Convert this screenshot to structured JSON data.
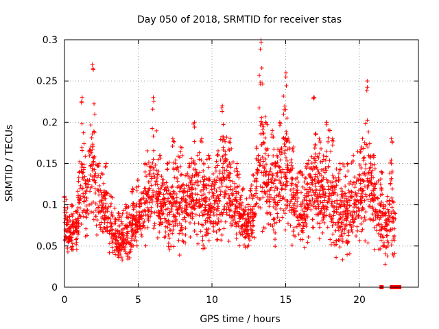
{
  "chart_data": {
    "type": "scatter",
    "title": "Day 050 of 2018, SRMTID for receiver stas",
    "xlabel": "GPS time / hours",
    "ylabel": "SRMTID / TECUs",
    "xlim": [
      0,
      24
    ],
    "ylim": [
      0,
      0.3
    ],
    "xticks": [
      0,
      5,
      10,
      15,
      20
    ],
    "yticks": [
      0,
      0.05,
      0.1,
      0.15,
      0.2,
      0.25,
      0.3
    ],
    "xtick_labels": [
      "0",
      "5",
      "10",
      "15",
      "20"
    ],
    "ytick_labels": [
      "0",
      "0.05",
      "0.1",
      "0.15",
      "0.2",
      "0.25",
      "0.3"
    ],
    "grid": true,
    "marker": "+",
    "series_color": "#ff0000",
    "zero_markers": [
      21.5,
      22.2,
      22.3,
      22.5,
      22.6,
      22.7
    ],
    "envelope": [
      [
        0.0,
        0.03,
        0.11
      ],
      [
        0.5,
        0.03,
        0.1
      ],
      [
        1.0,
        0.03,
        0.14
      ],
      [
        1.2,
        0.04,
        0.23
      ],
      [
        1.5,
        0.04,
        0.13
      ],
      [
        1.9,
        0.04,
        0.27
      ],
      [
        2.3,
        0.04,
        0.15
      ],
      [
        2.8,
        0.04,
        0.15
      ],
      [
        3.2,
        0.03,
        0.11
      ],
      [
        3.7,
        0.02,
        0.09
      ],
      [
        4.2,
        0.02,
        0.1
      ],
      [
        4.6,
        0.03,
        0.12
      ],
      [
        5.0,
        0.04,
        0.13
      ],
      [
        5.5,
        0.04,
        0.15
      ],
      [
        6.0,
        0.04,
        0.23
      ],
      [
        6.5,
        0.04,
        0.16
      ],
      [
        7.0,
        0.03,
        0.15
      ],
      [
        7.4,
        0.02,
        0.18
      ],
      [
        7.9,
        0.03,
        0.17
      ],
      [
        8.4,
        0.04,
        0.15
      ],
      [
        8.8,
        0.04,
        0.2
      ],
      [
        9.3,
        0.03,
        0.18
      ],
      [
        9.8,
        0.04,
        0.16
      ],
      [
        10.3,
        0.04,
        0.16
      ],
      [
        10.7,
        0.04,
        0.22
      ],
      [
        11.2,
        0.04,
        0.18
      ],
      [
        11.7,
        0.04,
        0.15
      ],
      [
        12.1,
        0.03,
        0.12
      ],
      [
        12.6,
        0.03,
        0.12
      ],
      [
        13.0,
        0.04,
        0.17
      ],
      [
        13.3,
        0.05,
        0.3
      ],
      [
        13.7,
        0.04,
        0.2
      ],
      [
        14.1,
        0.03,
        0.19
      ],
      [
        14.6,
        0.04,
        0.2
      ],
      [
        15.0,
        0.04,
        0.26
      ],
      [
        15.5,
        0.04,
        0.17
      ],
      [
        16.0,
        0.03,
        0.14
      ],
      [
        16.4,
        0.04,
        0.15
      ],
      [
        16.9,
        0.04,
        0.23
      ],
      [
        17.3,
        0.03,
        0.18
      ],
      [
        17.8,
        0.03,
        0.2
      ],
      [
        18.2,
        0.02,
        0.18
      ],
      [
        18.7,
        0.02,
        0.15
      ],
      [
        19.2,
        0.02,
        0.15
      ],
      [
        19.6,
        0.03,
        0.16
      ],
      [
        20.1,
        0.03,
        0.17
      ],
      [
        20.5,
        0.03,
        0.25
      ],
      [
        21.0,
        0.03,
        0.16
      ],
      [
        21.5,
        0.02,
        0.14
      ],
      [
        21.9,
        0.02,
        0.11
      ],
      [
        22.2,
        0.02,
        0.18
      ],
      [
        22.4,
        0.03,
        0.09
      ]
    ]
  }
}
